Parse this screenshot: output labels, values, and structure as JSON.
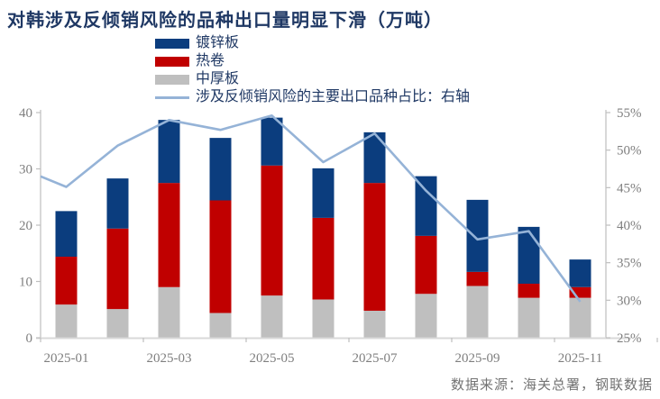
{
  "title": "对韩涉及反倾销风险的品种出口量明显下滑（万吨）",
  "source": "数据来源：海关总署，钢联数据",
  "colors": {
    "title_text": "#1F3864",
    "legend_text": "#1F3864",
    "axis_text": "#7F7F7F",
    "axis_line": "#D9D9D9",
    "tick_mark": "#BFBFBF",
    "galvanized_sheet": "#0B3D7E",
    "hot_rolled_coil": "#C00000",
    "medium_plate": "#BFBFBF",
    "risk_share_line": "#95B3D7"
  },
  "chart_data": {
    "type": "bar",
    "subtype": "stacked-bars-with-right-axis-line",
    "title": "对韩涉及反倾销风险的品种出口量明显下滑（万吨）",
    "categories": [
      "2025-01",
      "2025-02",
      "2025-03",
      "2025-04",
      "2025-05",
      "2025-06",
      "2025-07",
      "2025-08",
      "2025-09",
      "2025-10",
      "2025-11"
    ],
    "x_tick_labels": [
      "2025-01",
      "2025-03",
      "2025-05",
      "2025-07",
      "2025-09",
      "2025-11"
    ],
    "series": [
      {
        "key": "galvanized_sheet",
        "name": "镀锌板",
        "type": "bar",
        "color": "#0B3D7E",
        "values": [
          8.1,
          8.9,
          11.2,
          11.1,
          8.5,
          8.8,
          9.0,
          10.6,
          12.8,
          10.1,
          4.9
        ]
      },
      {
        "key": "hot_rolled_coil",
        "name": "热卷",
        "type": "bar",
        "color": "#C00000",
        "values": [
          8.5,
          14.3,
          18.5,
          20.0,
          23.1,
          14.5,
          22.7,
          10.3,
          2.5,
          2.5,
          1.9
        ]
      },
      {
        "key": "medium_plate",
        "name": "中厚板",
        "type": "bar",
        "color": "#BFBFBF",
        "values": [
          5.9,
          5.1,
          9.0,
          4.4,
          7.5,
          6.8,
          4.8,
          7.8,
          9.2,
          7.1,
          7.1
        ]
      },
      {
        "key": "risk_share_line",
        "name": "涉及反倾销风险的主要出口品种占比：右轴",
        "type": "line",
        "axis": "right",
        "color": "#95B3D7",
        "values": [
          45.1,
          50.6,
          54.0,
          52.7,
          54.6,
          48.4,
          52.2,
          44.6,
          38.1,
          39.2,
          29.8
        ],
        "edge_start_percent": 46.5
      }
    ],
    "left_axis": {
      "min": 0,
      "max": 40,
      "ticks": [
        0,
        10,
        20,
        30,
        40
      ]
    },
    "right_axis": {
      "min": 25,
      "max": 55,
      "ticks": [
        25,
        30,
        35,
        40,
        45,
        50,
        55
      ],
      "suffix": "%"
    },
    "grid": false,
    "legend_position": "top-center"
  }
}
